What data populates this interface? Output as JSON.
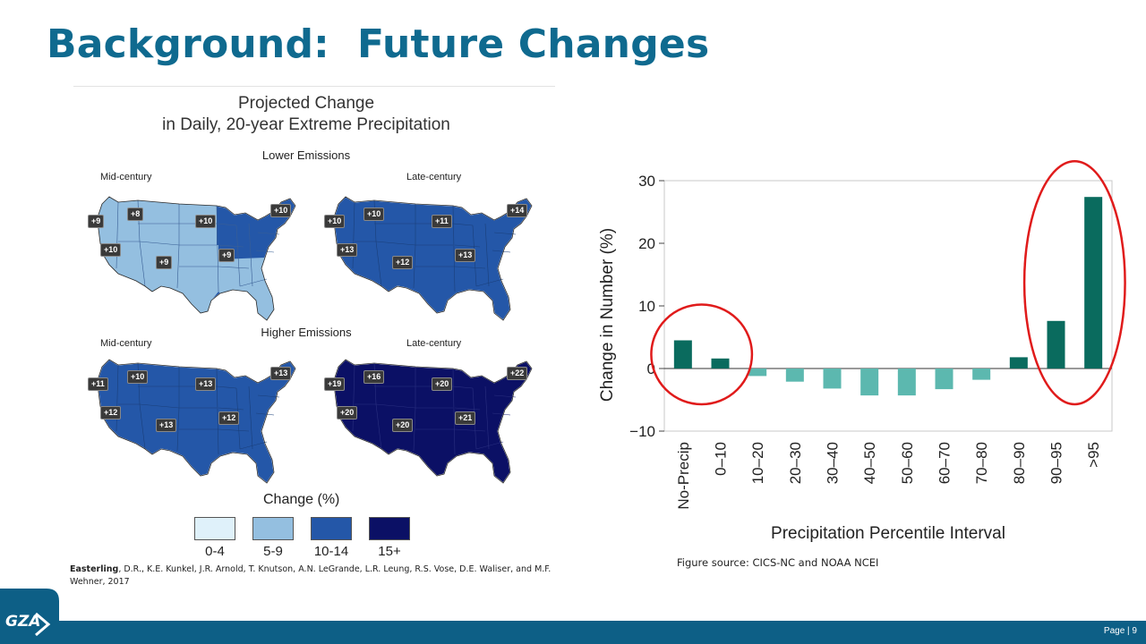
{
  "slide": {
    "title": "Background:  Future Changes",
    "page_label": "Page | 9",
    "logo_text": "GZA"
  },
  "maps_figure": {
    "title_line1": "Projected Change",
    "title_line2": "in Daily, 20-year Extreme Precipitation",
    "lower_emissions": "Lower Emissions",
    "higher_emissions": "Higher Emissions",
    "mid_century": "Mid-century",
    "late_century": "Late-century",
    "panels": {
      "lower_mid": {
        "badges": [
          "+9",
          "+8",
          "+10",
          "+10",
          "+10",
          "+9",
          "+9"
        ]
      },
      "lower_late": {
        "badges": [
          "+10",
          "+10",
          "+11",
          "+14",
          "+13",
          "+12",
          "+13"
        ]
      },
      "higher_mid": {
        "badges": [
          "+11",
          "+10",
          "+13",
          "+13",
          "+12",
          "+13",
          "+12"
        ]
      },
      "higher_late": {
        "badges": [
          "+19",
          "+16",
          "+20",
          "+22",
          "+20",
          "+20",
          "+21"
        ]
      }
    },
    "legend_title": "Change (%)",
    "legend": [
      {
        "label": "0-4",
        "color": "#dff1fa"
      },
      {
        "label": "5-9",
        "color": "#94bfe0"
      },
      {
        "label": "10-14",
        "color": "#2457a8"
      },
      {
        "label": "15+",
        "color": "#0b1065"
      }
    ],
    "citation_author": "Easterling",
    "citation_rest": ", D.R., K.E. Kunkel, J.R. Arnold, T. Knutson, A.N. LeGrande, L.R. Leung, R.S. Vose, D.E. Waliser, and M.F. Wehner, 2017"
  },
  "chart_data": {
    "type": "bar",
    "categories": [
      "No-Precip",
      "0–10",
      "10–20",
      "20–30",
      "30–40",
      "40–50",
      "50–60",
      "60–70",
      "70–80",
      "80–90",
      "90–95",
      ">95"
    ],
    "values": [
      4.5,
      1.6,
      -1.2,
      -2.1,
      -3.2,
      -4.3,
      -4.3,
      -3.3,
      -1.8,
      1.8,
      7.6,
      27.4
    ],
    "xlabel": "Precipitation Percentile Interval",
    "ylabel": "Change in Number (%)",
    "ylim": [
      -10,
      30
    ],
    "yticks": [
      -10,
      0,
      10,
      20,
      30
    ],
    "ytick_labels": [
      "−10",
      "0",
      "10",
      "20",
      "30"
    ],
    "colors": {
      "positive": "#0a6b5e",
      "negative": "#5cb8af",
      "highlight": "#e01b1b"
    },
    "highlights": [
      {
        "from": "No-Precip",
        "to": "0–10"
      },
      {
        "from": "90–95",
        "to": ">95"
      }
    ]
  },
  "figure_source": "Figure source: CICS-NC and NOAA NCEI"
}
